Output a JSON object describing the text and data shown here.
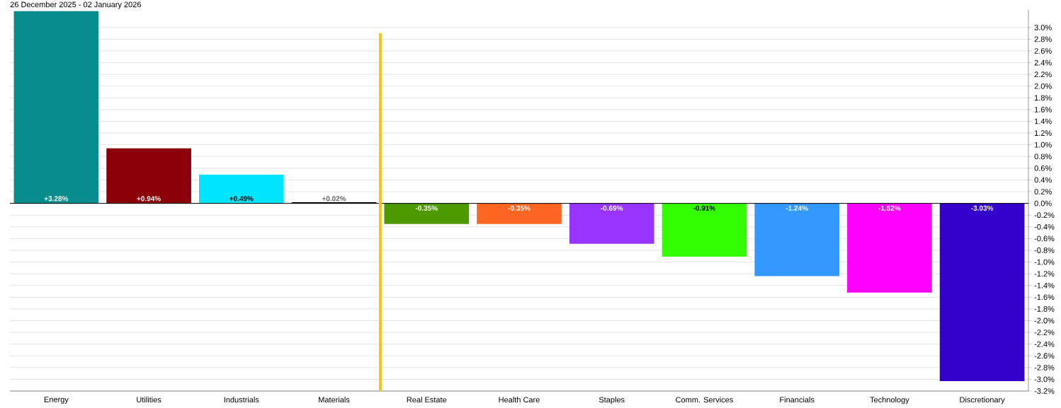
{
  "chart_data": {
    "type": "bar",
    "title": "26 December 2025 - 02 January 2026",
    "categories": [
      "Energy",
      "Utilities",
      "Industrials",
      "Materials",
      "Real Estate",
      "Health Care",
      "Staples",
      "Comm. Services",
      "Financials",
      "Technology",
      "Discretionary"
    ],
    "values": [
      3.28,
      0.94,
      0.49,
      0.02,
      -0.35,
      -0.35,
      -0.69,
      -0.91,
      -1.24,
      -1.52,
      -3.03
    ],
    "colors": [
      "#088c8c",
      "#8b0008",
      "#00e5ff",
      "#000000",
      "#4c9900",
      "#ff6622",
      "#9933ff",
      "#33ff00",
      "#3399ff",
      "#ff00ff",
      "#3300cc"
    ],
    "value_labels": [
      "+3.28%",
      "+0.94%",
      "+0.49%",
      "+0.02%",
      "-0.35%",
      "-0.35%",
      "-0.69%",
      "-0.91%",
      "-1.24%",
      "-1.52%",
      "-3.03%"
    ],
    "ylim": [
      -3.2,
      3.3
    ],
    "yticks": [
      {
        "value": 3.0,
        "label": "3.0%"
      },
      {
        "value": 2.8,
        "label": "2.8%"
      },
      {
        "value": 2.6,
        "label": "2.6%"
      },
      {
        "value": 2.4,
        "label": "2.4%"
      },
      {
        "value": 2.2,
        "label": "2.2%"
      },
      {
        "value": 2.0,
        "label": "2.0%"
      },
      {
        "value": 1.8,
        "label": "1.8%"
      },
      {
        "value": 1.6,
        "label": "1.6%"
      },
      {
        "value": 1.4,
        "label": "1.4%"
      },
      {
        "value": 1.2,
        "label": "1.2%"
      },
      {
        "value": 1.0,
        "label": "1.0%"
      },
      {
        "value": 0.8,
        "label": "0.8%"
      },
      {
        "value": 0.6,
        "label": "0.6%"
      },
      {
        "value": 0.4,
        "label": "0.4%"
      },
      {
        "value": 0.2,
        "label": "0.2%"
      },
      {
        "value": 0.0,
        "label": "0.0%"
      },
      {
        "value": -0.2,
        "label": "-0.2%"
      },
      {
        "value": -0.4,
        "label": "-0.4%"
      },
      {
        "value": -0.6,
        "label": "-0.6%"
      },
      {
        "value": -0.8,
        "label": "-0.8%"
      },
      {
        "value": -1.0,
        "label": "-1.0%"
      },
      {
        "value": -1.2,
        "label": "-1.2%"
      },
      {
        "value": -1.4,
        "label": "-1.4%"
      },
      {
        "value": -1.6,
        "label": "-1.6%"
      },
      {
        "value": -1.8,
        "label": "-1.8%"
      },
      {
        "value": -2.0,
        "label": "-2.0%"
      },
      {
        "value": -2.2,
        "label": "-2.2%"
      },
      {
        "value": -2.4,
        "label": "-2.4%"
      },
      {
        "value": -2.6,
        "label": "-2.6%"
      },
      {
        "value": -2.8,
        "label": "-2.8%"
      },
      {
        "value": -3.0,
        "label": "-3.0%"
      },
      {
        "value": -3.2,
        "label": "-3.2%"
      }
    ],
    "grid": "y",
    "legend": false
  }
}
